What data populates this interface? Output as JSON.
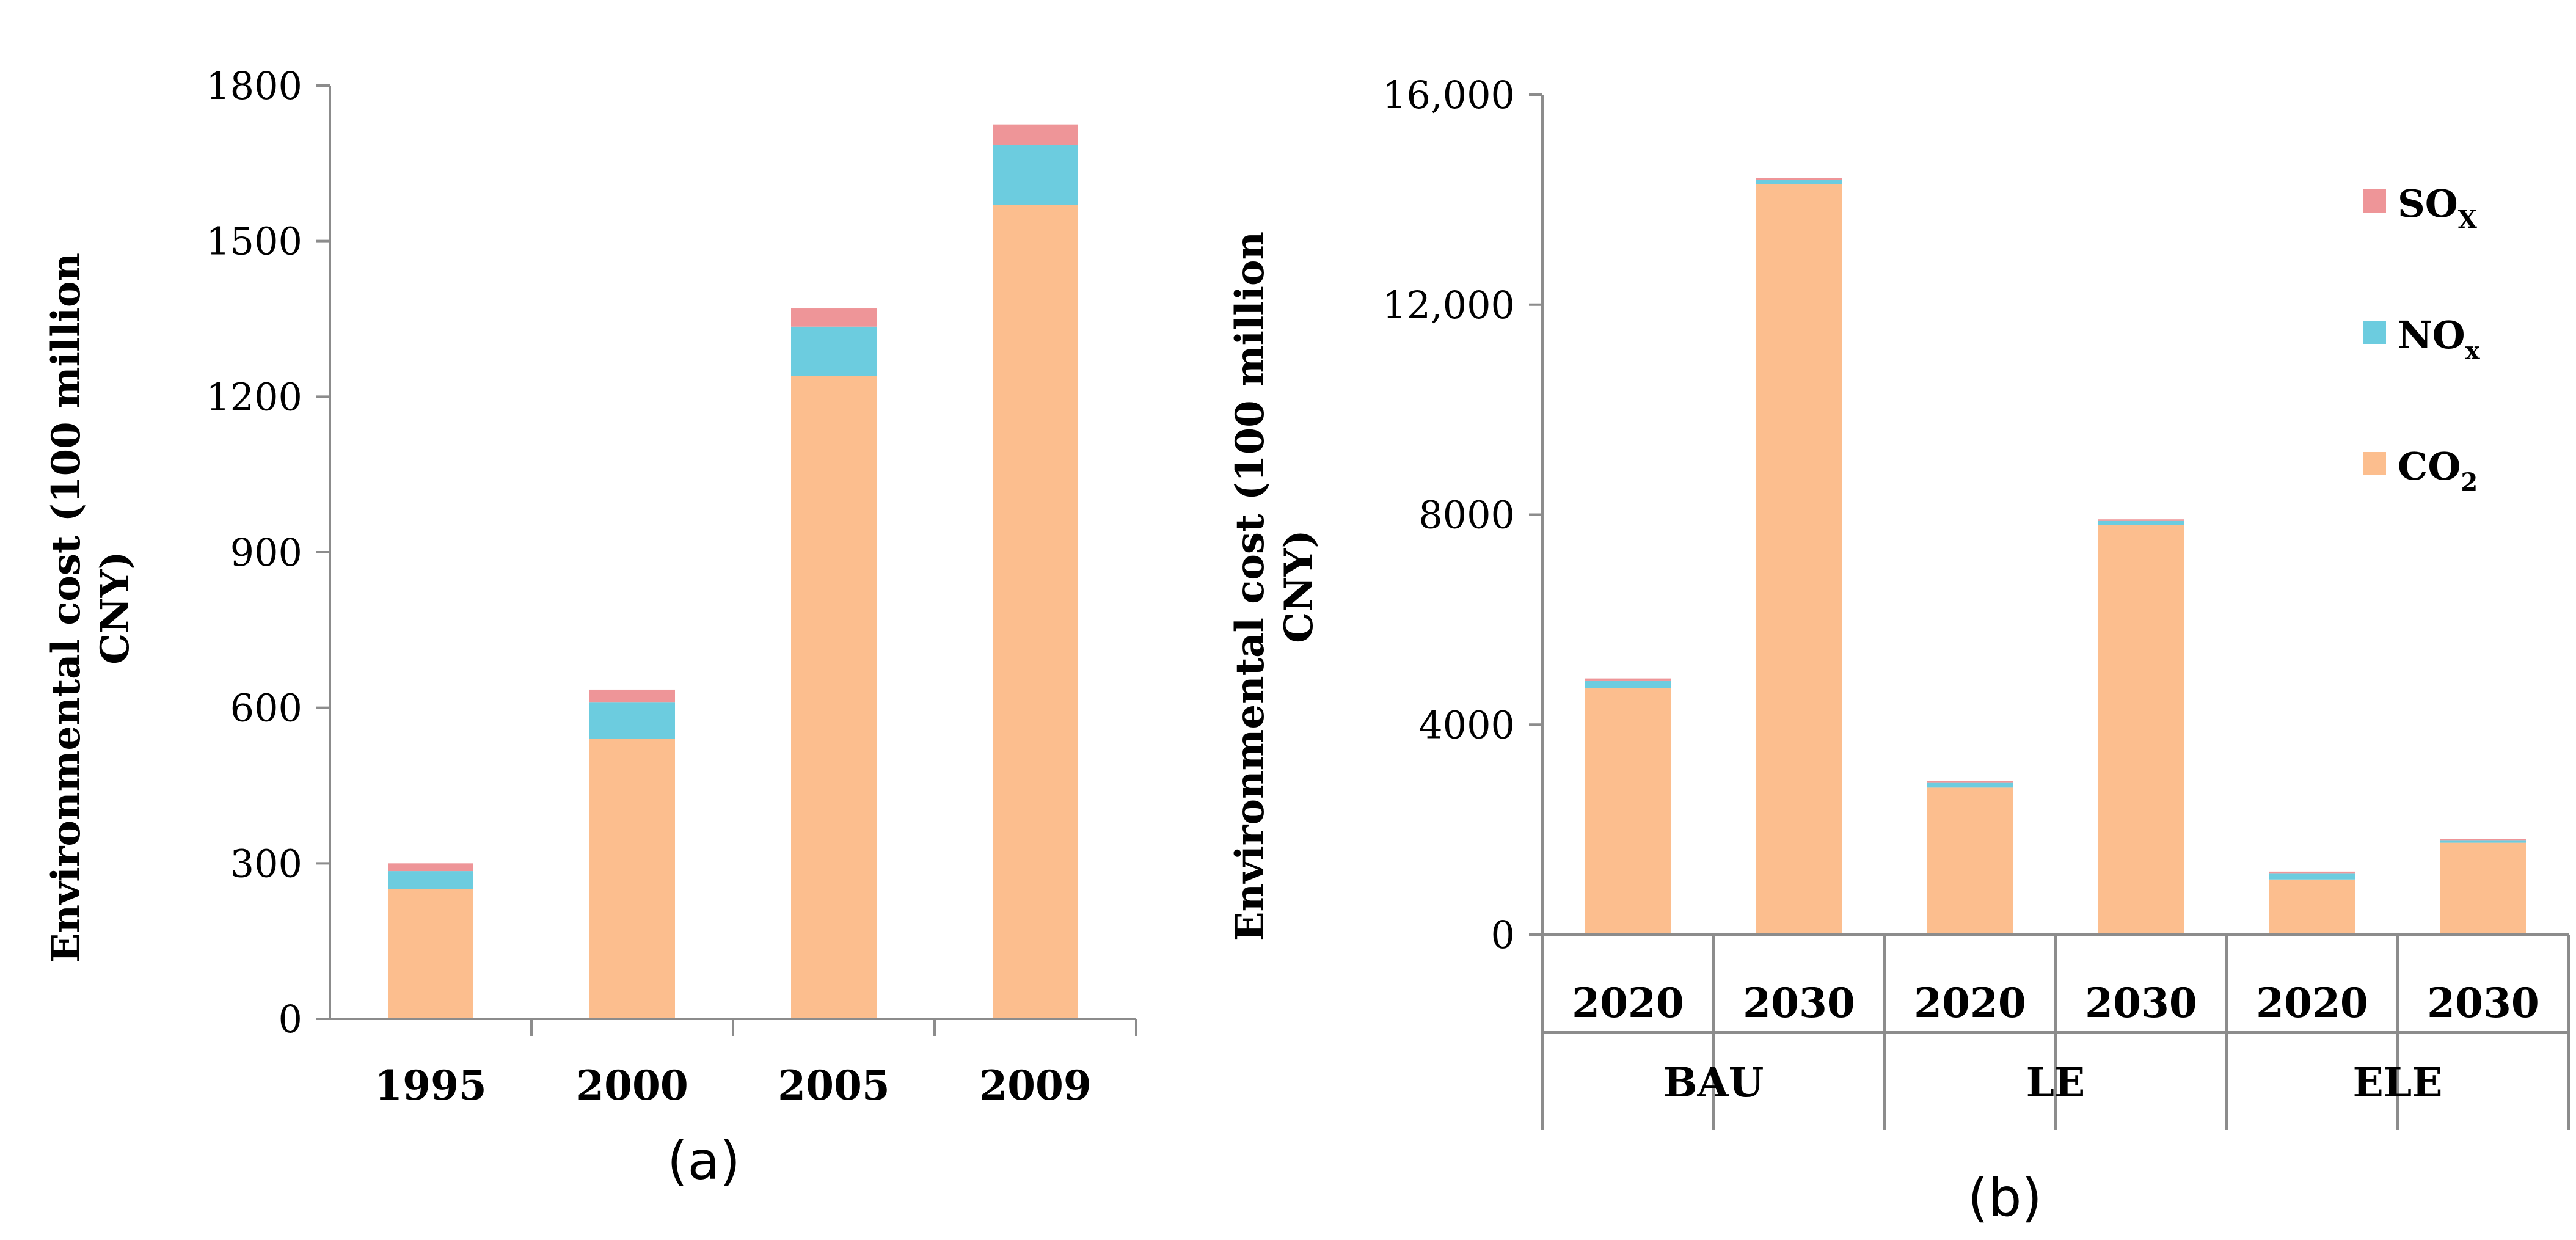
{
  "chart_data": [
    {
      "type": "bar",
      "stacked": true,
      "panel_label": "(a)",
      "ylabel_line1": "Environmental cost (100 million",
      "ylabel_line2": "CNY)",
      "ylim": [
        0,
        1800
      ],
      "yticks": [
        "0",
        "300",
        "600",
        "900",
        "1200",
        "1500",
        "1800"
      ],
      "categories": [
        "1995",
        "2000",
        "2005",
        "2009"
      ],
      "series": [
        {
          "name": "CO2",
          "color": "#fcbe8e",
          "values": [
            250,
            540,
            1240,
            1570
          ]
        },
        {
          "name": "NOx",
          "color": "#6cccdf",
          "values": [
            35,
            70,
            95,
            115
          ]
        },
        {
          "name": "SOx",
          "color": "#ee9598",
          "values": [
            15,
            25,
            35,
            40
          ]
        }
      ]
    },
    {
      "type": "bar",
      "stacked": true,
      "panel_label": "(b)",
      "ylabel_line1": "Environmental cost (100 million",
      "ylabel_line2": "CNY)",
      "ylim": [
        0,
        16000
      ],
      "yticks": [
        "0",
        "4000",
        "8000",
        "12,000",
        "16,000"
      ],
      "categories": [
        "2020",
        "2030",
        "2020",
        "2030",
        "2020",
        "2030"
      ],
      "groups": [
        "BAU",
        "LE",
        "ELE"
      ],
      "series": [
        {
          "name": "CO2",
          "color": "#fcbe8e",
          "values": [
            4700,
            14300,
            2800,
            7800,
            1050,
            1750
          ]
        },
        {
          "name": "NOx",
          "color": "#6cccdf",
          "values": [
            130,
            80,
            90,
            80,
            110,
            50
          ]
        },
        {
          "name": "SOx",
          "color": "#ee9598",
          "values": [
            50,
            30,
            40,
            30,
            40,
            20
          ]
        }
      ],
      "legend": [
        {
          "main": "SO",
          "sub": "X",
          "color": "#ee9598"
        },
        {
          "main": "NO",
          "sub": "x",
          "color": "#6cccdf"
        },
        {
          "main": "CO",
          "sub": "2",
          "color": "#fcbe8e"
        }
      ]
    }
  ]
}
